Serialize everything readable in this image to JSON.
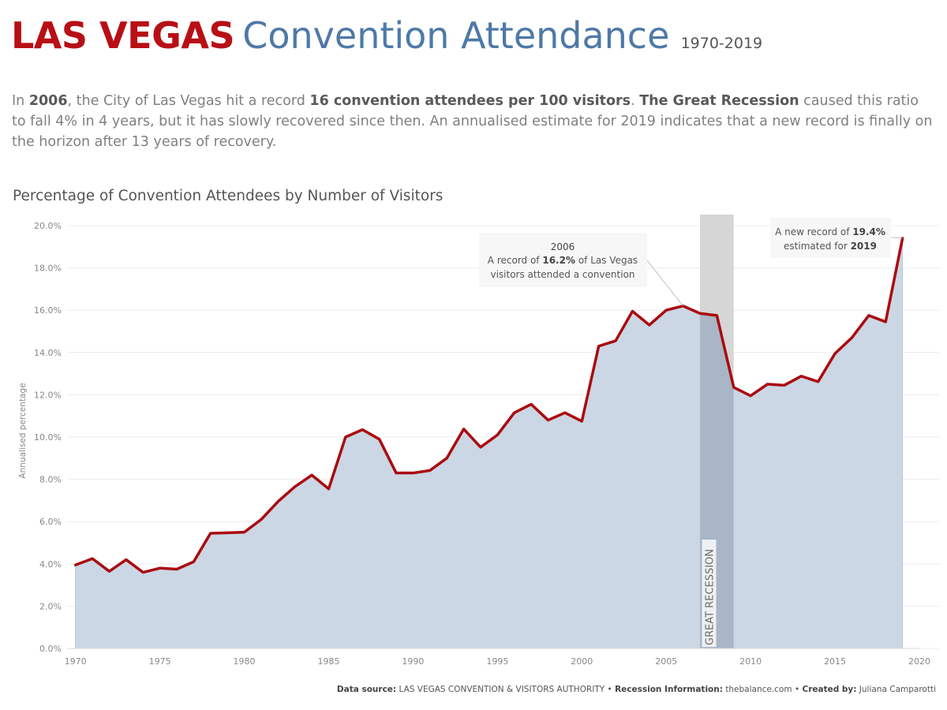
{
  "header": {
    "title_red": "LAS VEGAS",
    "title_blue": "Convention Attendance",
    "title_years": "1970-2019"
  },
  "intro": {
    "p1": "In ",
    "b1": "2006",
    "p2": ", the City of Las Vegas hit a record ",
    "b2": "16 convention attendees per 100 visitors",
    "p3": ". ",
    "b3": "The Great Recession",
    "p4": " caused this ratio to fall 4% in 4 years, but it has slowly recovered since then. An annualised estimate for 2019 indicates that a new record is finally on the horizon after 13 years of recovery."
  },
  "footer": {
    "l1": "Data source:",
    "v1": " LAS VEGAS CONVENTION & VISITORS AUTHORITY • ",
    "l2": "Recession Information:",
    "v2": " thebalance.com • ",
    "l3": "Created by:",
    "v3": "  Juliana Camparotti"
  },
  "chart_data": {
    "type": "area",
    "title": "Percentage of Convention Attendees by Number of Visitors",
    "ylabel": "Annualised percentage",
    "xlabel": "",
    "x": [
      1970,
      1971,
      1972,
      1973,
      1974,
      1975,
      1976,
      1977,
      1978,
      1979,
      1980,
      1981,
      1982,
      1983,
      1984,
      1985,
      1986,
      1987,
      1988,
      1989,
      1990,
      1991,
      1992,
      1993,
      1994,
      1995,
      1996,
      1997,
      1998,
      1999,
      2000,
      2001,
      2002,
      2003,
      2004,
      2005,
      2006,
      2007,
      2008,
      2009,
      2010,
      2011,
      2012,
      2013,
      2014,
      2015,
      2016,
      2017,
      2018,
      2019
    ],
    "values": [
      3.95,
      4.25,
      3.65,
      4.2,
      3.6,
      3.8,
      3.75,
      4.1,
      5.45,
      5.47,
      5.5,
      6.1,
      6.95,
      7.65,
      8.2,
      7.55,
      10.0,
      10.35,
      9.9,
      8.3,
      8.3,
      8.42,
      9.0,
      10.38,
      9.52,
      10.1,
      11.15,
      11.55,
      10.8,
      11.15,
      10.75,
      14.3,
      14.55,
      15.95,
      15.3,
      16.0,
      16.2,
      15.85,
      15.75,
      12.35,
      11.95,
      12.5,
      12.45,
      12.88,
      12.62,
      13.95,
      14.7,
      15.75,
      15.45,
      19.4
    ],
    "ylim": [
      0,
      20
    ],
    "xlim": [
      1969.5,
      2020
    ],
    "yticks": [
      "0.0%",
      "2.0%",
      "4.0%",
      "6.0%",
      "8.0%",
      "10.0%",
      "12.0%",
      "14.0%",
      "16.0%",
      "18.0%",
      "20.0%"
    ],
    "xticks": [
      "1970",
      "1975",
      "1980",
      "1985",
      "1990",
      "1995",
      "2000",
      "2005",
      "2010",
      "2015",
      "2020"
    ],
    "grid": true,
    "legend": "none",
    "colors": {
      "line": "#aa0a10",
      "area": "#cbd7e4",
      "recession": "#a6a6a6",
      "title_red": "#b80f16",
      "title_blue": "#4e79a7"
    },
    "recession": {
      "label": "GREAT RECESSION",
      "start": 2007,
      "end": 2009
    },
    "annotations": {
      "a2006": {
        "year_label": "2006",
        "pre": "A record of ",
        "value": "16.2%",
        "post": " of Las Vegas",
        "line2": "visitors attended a convention"
      },
      "a2019": {
        "pre": "A new record of ",
        "value": "19.4%",
        "line2_pre": "estimated for  ",
        "line2_value": "2019"
      }
    }
  }
}
